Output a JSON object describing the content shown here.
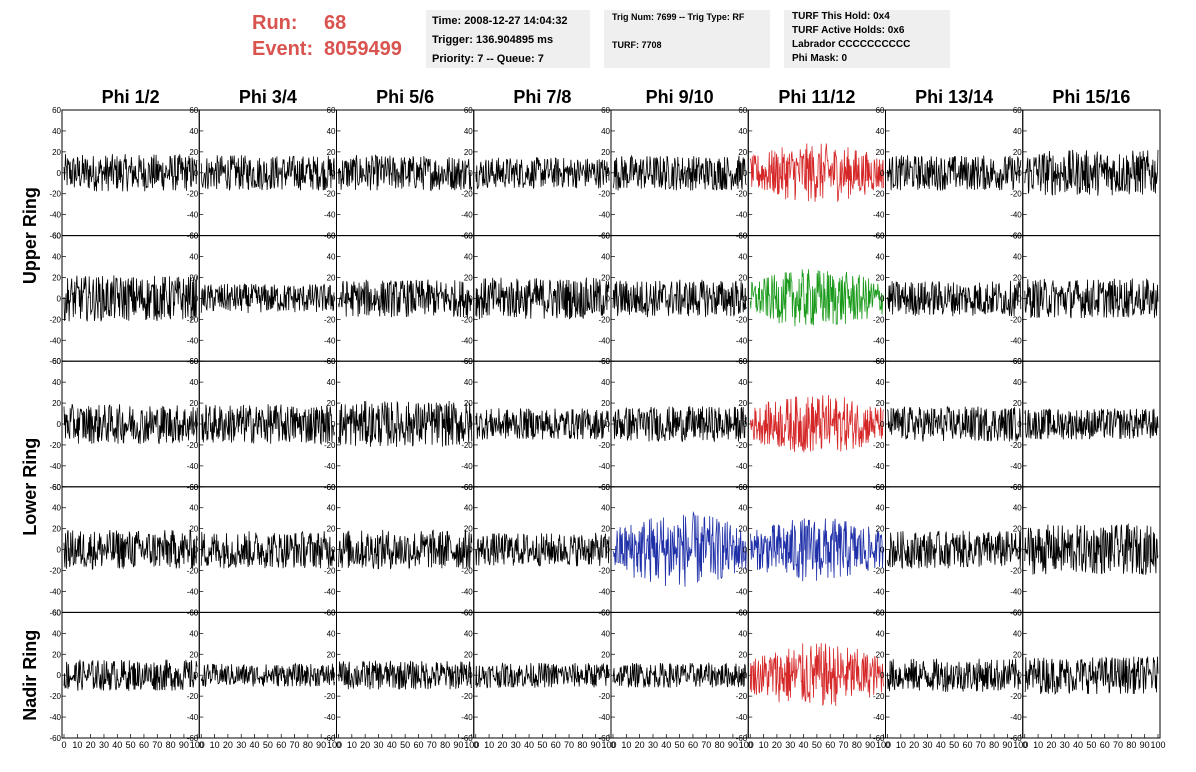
{
  "header": {
    "run_label": "Run:",
    "run_value": "68",
    "event_label": "Event:",
    "event_value": "8059499"
  },
  "time_panel": {
    "time": "Time: 2008-12-27 14:04:32",
    "trigger": "Trigger: 136.904895 ms",
    "priority": "Priority: 7 -- Queue: 7"
  },
  "trig_panel": {
    "trig": "Trig Num: 7699 -- Trig Type: RF",
    "turf": "TURF: 7708"
  },
  "turf_panel": {
    "this_hold": "TURF This Hold: 0x4",
    "active_holds": "TURF Active Holds: 0x6",
    "labrador": "Labrador CCCCCCCCCC",
    "phi_mask": "Phi Mask: 0"
  },
  "colors": {
    "header_red": "#d9534f",
    "panel_bg": "#efefef",
    "trace_default": "#000000",
    "trace_red": "#d62728",
    "trace_green": "#1a9a1a",
    "trace_blue": "#1f2fa8"
  },
  "chart_data": {
    "type": "line",
    "columns": [
      "Phi 1/2",
      "Phi 3/4",
      "Phi 5/6",
      "Phi 7/8",
      "Phi 9/10",
      "Phi 11/12",
      "Phi 13/14",
      "Phi 15/16"
    ],
    "row_labels": [
      {
        "label": "Upper Ring",
        "rows": [
          0,
          1
        ]
      },
      {
        "label": "Lower Ring",
        "rows": [
          2,
          3
        ]
      },
      {
        "label": "Nadir Ring",
        "rows": [
          4
        ]
      }
    ],
    "xlim": [
      0,
      100
    ],
    "ylim": [
      -60,
      60
    ],
    "x_ticks": [
      "0",
      "10",
      "20",
      "30",
      "40",
      "50",
      "60",
      "70",
      "80",
      "90",
      "100"
    ],
    "y_ticks": [
      "60",
      "40",
      "20",
      "0",
      "-20",
      "-40",
      "-60"
    ],
    "samples_per_trace": 260,
    "traces": [
      [
        {
          "amp": 18,
          "color": "default"
        },
        {
          "amp": 17,
          "color": "default"
        },
        {
          "amp": 17,
          "color": "default"
        },
        {
          "amp": 15,
          "color": "default"
        },
        {
          "amp": 17,
          "color": "default"
        },
        {
          "amp": 22,
          "color": "red"
        },
        {
          "amp": 17,
          "color": "default"
        },
        {
          "amp": 22,
          "color": "default"
        }
      ],
      [
        {
          "amp": 22,
          "color": "default"
        },
        {
          "amp": 14,
          "color": "default"
        },
        {
          "amp": 18,
          "color": "default"
        },
        {
          "amp": 20,
          "color": "default"
        },
        {
          "amp": 18,
          "color": "default"
        },
        {
          "amp": 22,
          "color": "green"
        },
        {
          "amp": 17,
          "color": "default"
        },
        {
          "amp": 19,
          "color": "default"
        }
      ],
      [
        {
          "amp": 19,
          "color": "default"
        },
        {
          "amp": 19,
          "color": "default"
        },
        {
          "amp": 22,
          "color": "default"
        },
        {
          "amp": 15,
          "color": "default"
        },
        {
          "amp": 17,
          "color": "default"
        },
        {
          "amp": 22,
          "color": "red"
        },
        {
          "amp": 17,
          "color": "default"
        },
        {
          "amp": 15,
          "color": "default"
        }
      ],
      [
        {
          "amp": 19,
          "color": "default"
        },
        {
          "amp": 18,
          "color": "default"
        },
        {
          "amp": 19,
          "color": "default"
        },
        {
          "amp": 16,
          "color": "default"
        },
        {
          "amp": 28,
          "color": "blue"
        },
        {
          "amp": 24,
          "color": "blue"
        },
        {
          "amp": 18,
          "color": "default"
        },
        {
          "amp": 24,
          "color": "default"
        }
      ],
      [
        {
          "amp": 15,
          "color": "default"
        },
        {
          "amp": 11,
          "color": "default"
        },
        {
          "amp": 14,
          "color": "default"
        },
        {
          "amp": 12,
          "color": "default"
        },
        {
          "amp": 12,
          "color": "default"
        },
        {
          "amp": 24,
          "color": "red"
        },
        {
          "amp": 16,
          "color": "default"
        },
        {
          "amp": 18,
          "color": "default"
        }
      ]
    ]
  }
}
